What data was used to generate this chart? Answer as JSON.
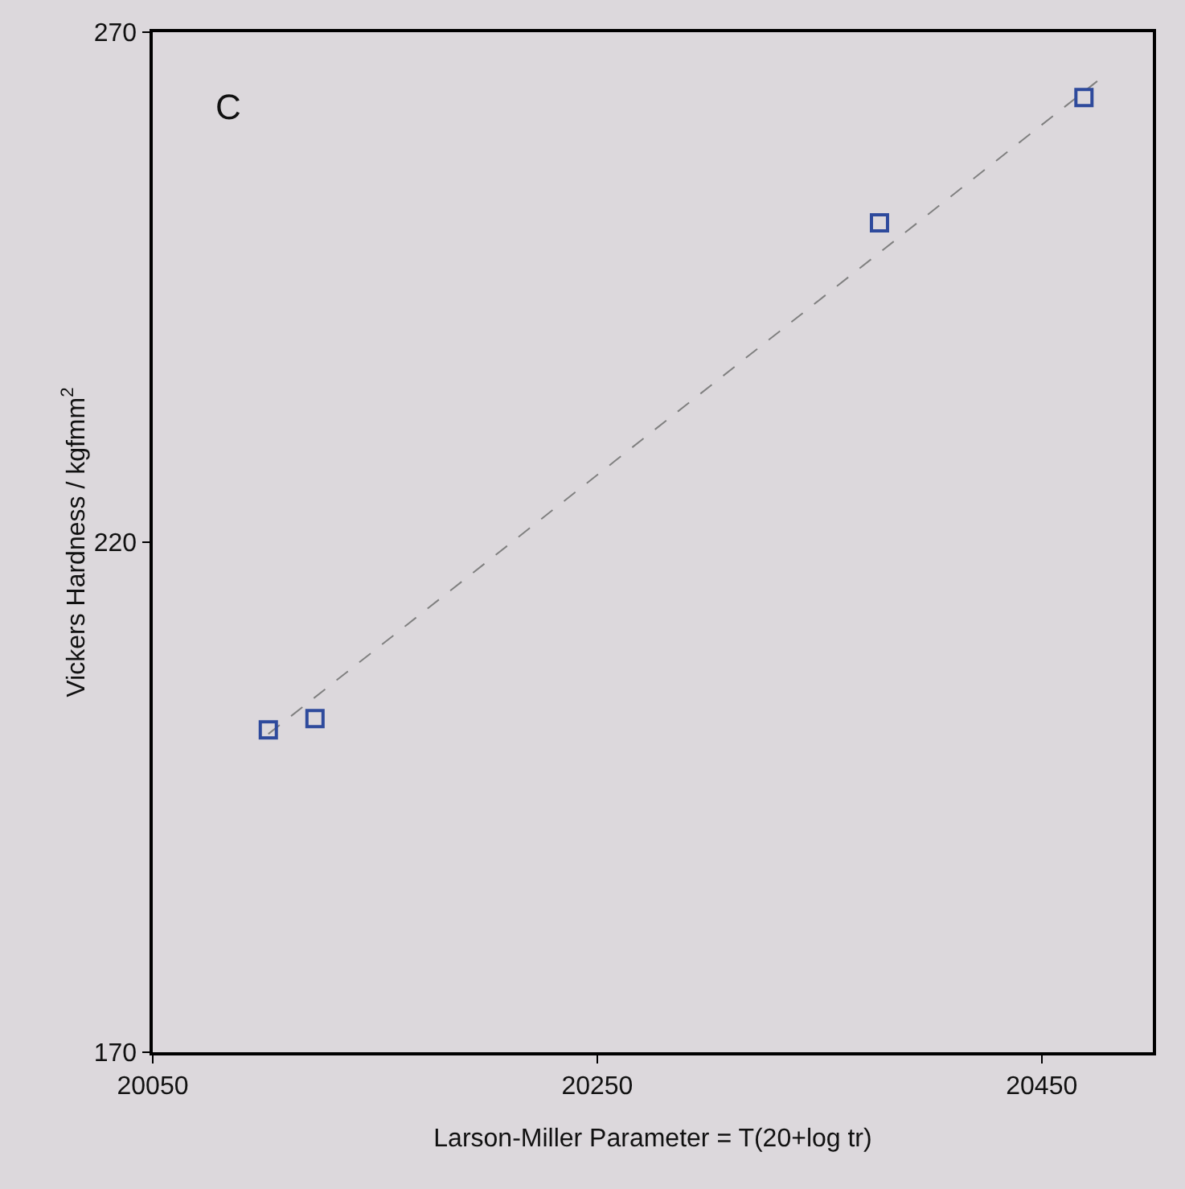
{
  "chart_data": {
    "type": "scatter",
    "xlabel": "Larson-Miller Parameter = T(20+log tr)",
    "ylabel": "Vickers Hardness / kgfmm$^{2}$",
    "annotations": [
      "C"
    ],
    "xlim": [
      20050,
      20500
    ],
    "xticks": [
      20050,
      20250,
      20450
    ],
    "ylim": [
      170,
      270
    ],
    "yticks": [
      170,
      220,
      270
    ],
    "grid": false,
    "marker": "square",
    "series": [
      {
        "color": "#2e4a9c",
        "x": [
          20102,
          20123,
          20377,
          20469
        ],
        "values": [
          201.6,
          202.7,
          251.3,
          263.6
        ]
      },
      {
        "type": "line",
        "color": "#808080",
        "line_style": "dashed",
        "marker": "none",
        "x": [
          20102,
          20475
        ],
        "values": [
          201.2,
          265.2
        ]
      }
    ]
  }
}
